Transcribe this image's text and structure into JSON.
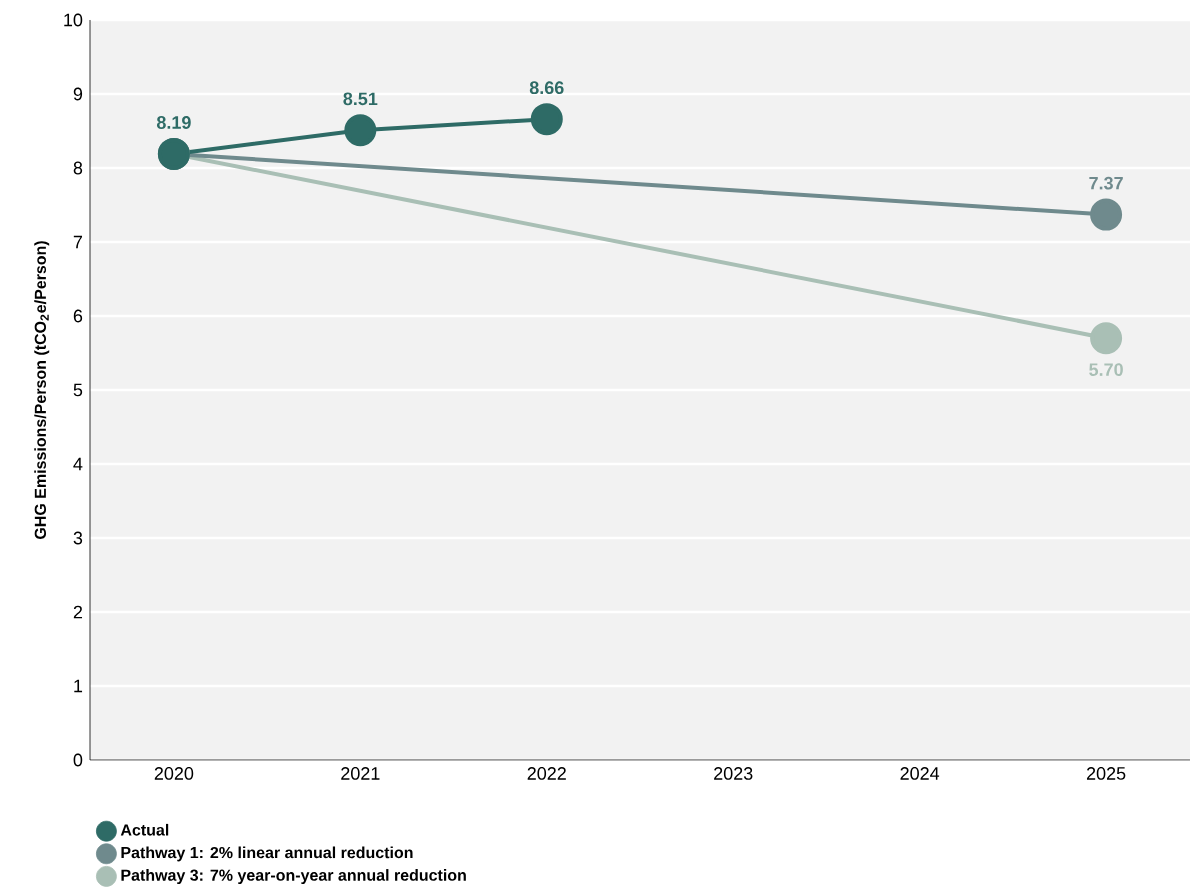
{
  "chart_data": {
    "type": "line",
    "ylabel": "GHG Emissions/Person (tCO$_{2}$e/Person)",
    "xlim": [
      2019.55,
      2025.45
    ],
    "xticks": [
      2020,
      2021,
      2022,
      2023,
      2024,
      2025
    ],
    "ylim": [
      0,
      10
    ],
    "yticks": [
      0,
      1,
      2,
      3,
      4,
      5,
      6,
      7,
      8,
      9,
      10
    ],
    "grid": "y",
    "legend": "bottom",
    "marker": "circle",
    "line_style": "solid",
    "series": [
      {
        "name": "Actual",
        "color": "#2e6b66",
        "x": [
          2020,
          2021,
          2022
        ],
        "values": [
          8.19,
          8.51,
          8.66
        ],
        "value_labels": [
          "8.19",
          "8.51",
          "8.66"
        ]
      },
      {
        "name": "Pathway 1: 2% linear annual reduction",
        "color": "#6f8a8d",
        "x": [
          2020,
          2025
        ],
        "values": [
          8.19,
          7.37
        ],
        "value_labels": [
          null,
          "7.37"
        ]
      },
      {
        "name": "Pathway 3: 7% year-on-year annual reduction",
        "color": "#a9bfb5",
        "x": [
          2020,
          2025
        ],
        "values": [
          8.19,
          5.7
        ],
        "value_labels": [
          null,
          "5.70"
        ]
      }
    ]
  }
}
